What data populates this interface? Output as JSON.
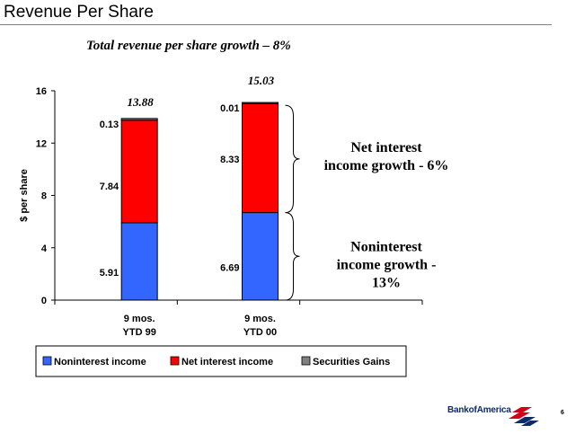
{
  "header": {
    "title": "Revenue Per Share",
    "subtitle": "Total revenue per share growth – 8%"
  },
  "chart_data": {
    "type": "bar",
    "stacked": true,
    "categories": [
      [
        "9 mos.",
        "YTD 99"
      ],
      [
        "9 mos.",
        "YTD 00"
      ]
    ],
    "series": [
      {
        "name": "Noninterest income",
        "values": [
          5.91,
          6.69
        ],
        "labels": [
          "5.91",
          "6.69"
        ],
        "color": "#3366ff"
      },
      {
        "name": "Net interest income",
        "values": [
          7.84,
          8.33
        ],
        "labels": [
          "7.84",
          "8.33"
        ],
        "color": "#ff0000"
      },
      {
        "name": "Securities Gains",
        "values": [
          0.13,
          0.01
        ],
        "labels": [
          "0.13",
          "0.01"
        ],
        "color": "#808080"
      }
    ],
    "totals": [
      "13.88",
      "15.03"
    ],
    "ylabel": "$ per share",
    "ylim": [
      0,
      16
    ],
    "yticks": [
      0,
      4,
      8,
      12,
      16
    ],
    "legend": "bottom",
    "annotations": [
      {
        "text": [
          "Net interest",
          "income growth - 6%"
        ],
        "target": "Net interest income"
      },
      {
        "text": [
          "Noninterest",
          "income growth  -",
          "13%"
        ],
        "target": "Noninterest income"
      }
    ]
  },
  "footer": {
    "logo_text": "BankofAmerica",
    "page_number": "6"
  },
  "colors": {
    "noninterest": "#3366ff",
    "net_interest": "#ff0000",
    "securities": "#808080",
    "logo_blue": "#0b2b6b",
    "logo_red": "#d4001a"
  }
}
